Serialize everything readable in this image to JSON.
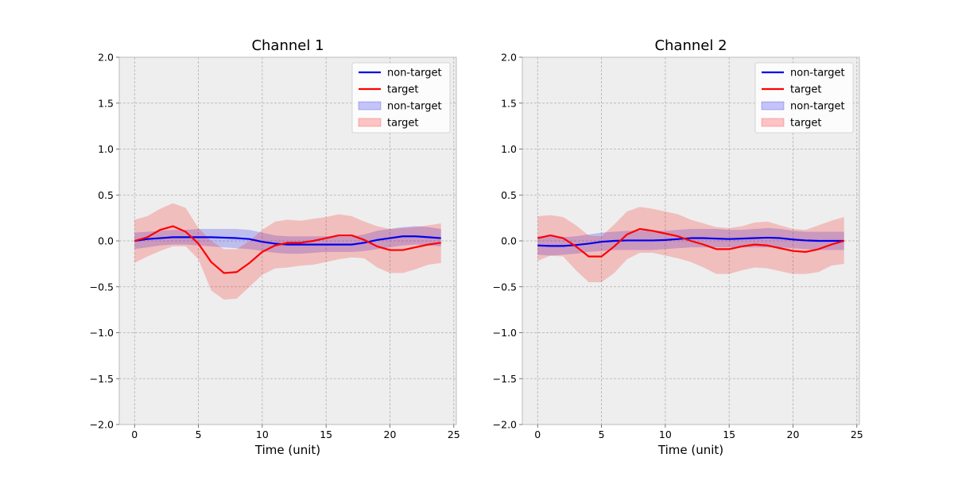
{
  "figure": {
    "background": "#ffffff",
    "axes_background": "#eeeeee",
    "grid_color": "#b0b0b0",
    "spine_color": "#bcbcbc"
  },
  "chart_data": [
    {
      "type": "line",
      "title": "Channel 1",
      "xlabel": "Time (unit)",
      "ylabel": "",
      "xlim": [
        -1.2,
        25.2
      ],
      "ylim": [
        -2.0,
        2.0
      ],
      "xticks": [
        0,
        5,
        10,
        15,
        20,
        25
      ],
      "xtick_labels": [
        "0",
        "5",
        "10",
        "15",
        "20",
        "25"
      ],
      "yticks": [
        -2.0,
        -1.5,
        -1.0,
        -0.5,
        0.0,
        0.5,
        1.0,
        1.5,
        2.0
      ],
      "ytick_labels": [
        "−2.0",
        "−1.5",
        "−1.0",
        "−0.5",
        "0.0",
        "0.5",
        "1.0",
        "1.5",
        "2.0"
      ],
      "grid": true,
      "legend_position": "top-right",
      "x": [
        0,
        1,
        2,
        3,
        4,
        5,
        6,
        7,
        8,
        9,
        10,
        11,
        12,
        13,
        14,
        15,
        16,
        17,
        18,
        19,
        20,
        21,
        22,
        23,
        24
      ],
      "series": [
        {
          "name": "non-target",
          "color": "#0000ee",
          "values": [
            0.0,
            0.02,
            0.03,
            0.04,
            0.04,
            0.04,
            0.04,
            0.035,
            0.03,
            0.02,
            -0.01,
            -0.03,
            -0.04,
            -0.04,
            -0.04,
            -0.04,
            -0.04,
            -0.04,
            -0.02,
            0.01,
            0.03,
            0.05,
            0.05,
            0.04,
            0.03
          ],
          "band_low": [
            -0.09,
            -0.07,
            -0.05,
            -0.04,
            -0.04,
            -0.05,
            -0.06,
            -0.07,
            -0.08,
            -0.09,
            -0.11,
            -0.13,
            -0.14,
            -0.14,
            -0.13,
            -0.12,
            -0.12,
            -0.12,
            -0.11,
            -0.09,
            -0.07,
            -0.05,
            -0.04,
            -0.05,
            -0.06
          ],
          "band_high": [
            0.09,
            0.1,
            0.11,
            0.12,
            0.12,
            0.13,
            0.13,
            0.13,
            0.13,
            0.12,
            0.09,
            0.06,
            0.05,
            0.05,
            0.05,
            0.05,
            0.05,
            0.05,
            0.07,
            0.11,
            0.13,
            0.15,
            0.16,
            0.15,
            0.13
          ]
        },
        {
          "name": "target",
          "color": "#ff0000",
          "values": [
            0.0,
            0.04,
            0.12,
            0.16,
            0.1,
            -0.03,
            -0.23,
            -0.35,
            -0.34,
            -0.24,
            -0.12,
            -0.05,
            -0.02,
            -0.02,
            0.0,
            0.03,
            0.06,
            0.06,
            0.01,
            -0.06,
            -0.1,
            -0.1,
            -0.07,
            -0.04,
            -0.02
          ],
          "band_low": [
            -0.24,
            -0.17,
            -0.11,
            -0.06,
            -0.06,
            -0.2,
            -0.54,
            -0.64,
            -0.63,
            -0.5,
            -0.37,
            -0.3,
            -0.29,
            -0.27,
            -0.26,
            -0.23,
            -0.2,
            -0.18,
            -0.19,
            -0.29,
            -0.35,
            -0.35,
            -0.31,
            -0.26,
            -0.24
          ],
          "band_high": [
            0.23,
            0.27,
            0.35,
            0.41,
            0.36,
            0.14,
            0.0,
            -0.09,
            -0.09,
            0.0,
            0.12,
            0.21,
            0.23,
            0.22,
            0.24,
            0.26,
            0.29,
            0.27,
            0.21,
            0.16,
            0.13,
            0.14,
            0.15,
            0.17,
            0.19
          ]
        }
      ],
      "legend": [
        "non-target",
        "target",
        "non-target",
        "target"
      ]
    },
    {
      "type": "line",
      "title": "Channel 2",
      "xlabel": "Time (unit)",
      "ylabel": "",
      "xlim": [
        -1.2,
        25.2
      ],
      "ylim": [
        -2.0,
        2.0
      ],
      "xticks": [
        0,
        5,
        10,
        15,
        20,
        25
      ],
      "xtick_labels": [
        "0",
        "5",
        "10",
        "15",
        "20",
        "25"
      ],
      "yticks": [
        -2.0,
        -1.5,
        -1.0,
        -0.5,
        0.0,
        0.5,
        1.0,
        1.5,
        2.0
      ],
      "ytick_labels": [
        "−2.0",
        "−1.5",
        "−1.0",
        "−0.5",
        "0.0",
        "0.5",
        "1.0",
        "1.5",
        "2.0"
      ],
      "grid": true,
      "legend_position": "top-right",
      "x": [
        0,
        1,
        2,
        3,
        4,
        5,
        6,
        7,
        8,
        9,
        10,
        11,
        12,
        13,
        14,
        15,
        16,
        17,
        18,
        19,
        20,
        21,
        22,
        23,
        24
      ],
      "series": [
        {
          "name": "non-target",
          "color": "#0000ee",
          "values": [
            -0.05,
            -0.055,
            -0.055,
            -0.045,
            -0.03,
            -0.01,
            0.0,
            0.005,
            0.005,
            0.005,
            0.01,
            0.02,
            0.03,
            0.03,
            0.025,
            0.02,
            0.025,
            0.03,
            0.035,
            0.03,
            0.015,
            0.005,
            0.0,
            0.0,
            0.0
          ],
          "band_low": [
            -0.15,
            -0.16,
            -0.15,
            -0.14,
            -0.12,
            -0.11,
            -0.1,
            -0.1,
            -0.1,
            -0.1,
            -0.09,
            -0.08,
            -0.07,
            -0.07,
            -0.07,
            -0.07,
            -0.07,
            -0.07,
            -0.07,
            -0.07,
            -0.08,
            -0.09,
            -0.1,
            -0.1,
            -0.1
          ],
          "band_high": [
            0.05,
            0.05,
            0.04,
            0.05,
            0.07,
            0.09,
            0.1,
            0.11,
            0.11,
            0.11,
            0.11,
            0.12,
            0.13,
            0.13,
            0.13,
            0.12,
            0.12,
            0.13,
            0.14,
            0.13,
            0.11,
            0.1,
            0.1,
            0.1,
            0.1
          ]
        },
        {
          "name": "target",
          "color": "#ff0000",
          "values": [
            0.03,
            0.06,
            0.03,
            -0.06,
            -0.17,
            -0.17,
            -0.06,
            0.07,
            0.13,
            0.11,
            0.08,
            0.05,
            0.0,
            -0.04,
            -0.09,
            -0.09,
            -0.06,
            -0.04,
            -0.05,
            -0.08,
            -0.11,
            -0.12,
            -0.09,
            -0.04,
            0.0
          ],
          "band_low": [
            -0.22,
            -0.16,
            -0.17,
            -0.32,
            -0.45,
            -0.45,
            -0.35,
            -0.2,
            -0.13,
            -0.13,
            -0.16,
            -0.19,
            -0.23,
            -0.29,
            -0.36,
            -0.36,
            -0.32,
            -0.29,
            -0.3,
            -0.33,
            -0.36,
            -0.36,
            -0.34,
            -0.27,
            -0.25
          ],
          "band_high": [
            0.27,
            0.28,
            0.26,
            0.17,
            0.06,
            0.05,
            0.18,
            0.32,
            0.37,
            0.35,
            0.32,
            0.29,
            0.23,
            0.19,
            0.15,
            0.14,
            0.16,
            0.2,
            0.21,
            0.17,
            0.13,
            0.12,
            0.17,
            0.22,
            0.26
          ]
        }
      ],
      "legend": [
        "non-target",
        "target",
        "non-target",
        "target"
      ]
    }
  ]
}
